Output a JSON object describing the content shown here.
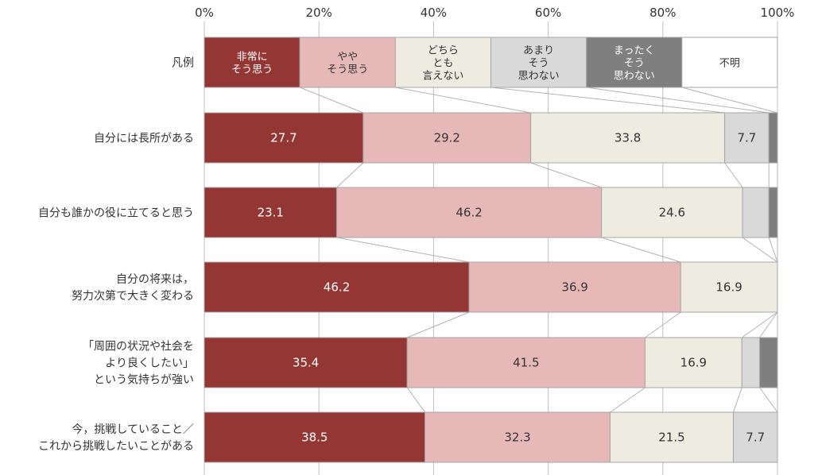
{
  "chart_data": {
    "type": "bar",
    "orientation": "horizontal",
    "stacked": true,
    "x_ticks": [
      "0%",
      "20%",
      "40%",
      "60%",
      "80%",
      "100%"
    ],
    "xlim": [
      0,
      100
    ],
    "grid": true,
    "legend": {
      "title": "凡例",
      "position": "top",
      "entries": [
        {
          "name": "非常に\nそう思う",
          "color": "#943634"
        },
        {
          "name": "やや\nそう思う",
          "color": "#e6b9b8"
        },
        {
          "name": "どちら\nとも\n言えない",
          "color": "#eeece1"
        },
        {
          "name": "あまり\nそう\n思わない",
          "color": "#d9d9d9"
        },
        {
          "name": "まったく\nそう\n思わない",
          "color": "#7f7f7f"
        },
        {
          "name": "不明",
          "color": "#ffffff"
        }
      ]
    },
    "categories": [
      "自分には長所がある",
      "自分も誰かの役に立てると思う",
      "自分の将来は，\n努力次第で大きく変わる",
      "「周囲の状況や社会を\nより良くしたい」\nという気持ちが強い",
      "今，挑戦していること／\nこれから挑戦したいことがある"
    ],
    "series": [
      {
        "name": "非常に\nそう思う",
        "values": [
          27.7,
          23.1,
          46.2,
          35.4,
          38.5
        ]
      },
      {
        "name": "やや\nそう思う",
        "values": [
          29.2,
          46.2,
          36.9,
          41.5,
          32.3
        ]
      },
      {
        "name": "どちら\nとも\n言えない",
        "values": [
          33.8,
          24.6,
          16.9,
          16.9,
          21.5
        ]
      },
      {
        "name": "あまり\nそう\n思わない",
        "values": [
          7.7,
          4.6,
          0,
          3.1,
          7.7
        ]
      },
      {
        "name": "まったく\nそう\n思わない",
        "values": [
          1.5,
          1.5,
          0,
          3.1,
          0
        ]
      },
      {
        "name": "不明",
        "values": [
          0,
          0,
          0,
          0,
          0
        ]
      }
    ],
    "data_labels": [
      [
        "27.7",
        "29.2",
        "33.8",
        "7.7",
        "",
        ""
      ],
      [
        "23.1",
        "46.2",
        "24.6",
        "",
        "",
        ""
      ],
      [
        "46.2",
        "36.9",
        "16.9",
        "",
        "",
        ""
      ],
      [
        "35.4",
        "41.5",
        "16.9",
        "",
        "",
        ""
      ],
      [
        "38.5",
        "32.3",
        "21.5",
        "7.7",
        "",
        ""
      ]
    ],
    "label_colors": [
      "#ffffff",
      "#333333",
      "#333333",
      "#333333",
      "#ffffff",
      "#333333"
    ]
  }
}
